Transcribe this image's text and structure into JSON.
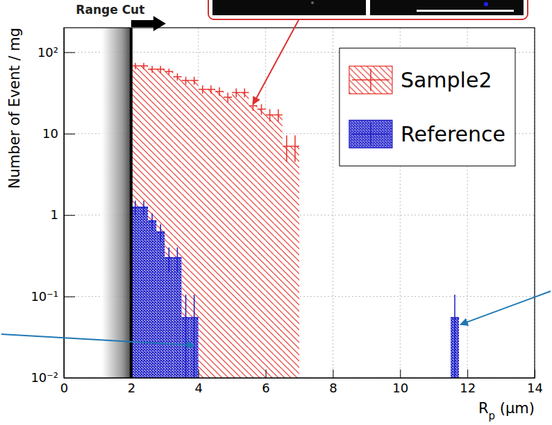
{
  "chart_data": {
    "type": "histogram",
    "x_label": "Rp (μm)",
    "y_label": "Number of Event / mg",
    "log": "y",
    "grid": true,
    "legend": "top-right",
    "xlim": [
      0,
      14
    ],
    "ylim": [
      0.01,
      200
    ],
    "xticks": [
      0,
      2,
      4,
      6,
      8,
      10,
      12,
      14
    ],
    "yticks": [
      {
        "value": 0.01,
        "label": "10⁻²"
      },
      {
        "value": 0.1,
        "label": "10⁻¹"
      },
      1,
      10,
      {
        "value": 100,
        "label": "10²"
      }
    ],
    "annotations": [
      {
        "text": "Range Cut",
        "x": 2
      }
    ],
    "series": [
      {
        "name": "Sample2",
        "color": "#e8302a",
        "bins": [
          2,
          2.25,
          2.5,
          2.75,
          3,
          3.25,
          3.5,
          3.75,
          4,
          4.25,
          4.5,
          4.75,
          5,
          5.25,
          5.5,
          5.75,
          6,
          6.25,
          6.5,
          6.75,
          7
        ],
        "values": [
          68,
          68,
          62,
          62,
          58,
          50,
          45,
          45,
          35,
          35,
          33,
          28,
          32,
          32,
          22,
          20,
          17,
          17,
          7,
          7
        ],
        "errors": [
          6,
          6,
          6,
          6,
          5,
          5,
          5,
          5,
          4,
          4,
          4,
          4,
          4,
          4,
          3,
          3,
          3,
          3,
          2.5,
          2.5
        ]
      },
      {
        "name": "Reference",
        "color": "#1c1cc8",
        "bins": [
          2,
          2.25,
          2.5,
          2.75,
          3,
          3.25,
          3.5,
          3.75,
          4,
          4.25,
          4.5,
          4.75,
          5,
          5.25,
          5.5,
          5.75,
          6,
          6.25,
          6.5,
          6.75,
          7,
          7.25,
          7.5,
          7.75,
          8,
          8.25,
          8.5,
          8.75,
          9,
          9.25,
          9.5,
          9.75,
          10,
          10.25,
          10.5,
          10.75,
          11,
          11.25,
          11.5,
          11.75,
          12
        ],
        "values": [
          1.25,
          1.25,
          0.85,
          0.62,
          0.3,
          0.3,
          0.055,
          0.055,
          null,
          null,
          null,
          null,
          null,
          null,
          null,
          null,
          null,
          null,
          null,
          null,
          null,
          null,
          null,
          null,
          null,
          null,
          null,
          null,
          null,
          null,
          null,
          null,
          null,
          null,
          null,
          null,
          null,
          null,
          0.055,
          null
        ],
        "errors": [
          0.25,
          0.25,
          0.2,
          0.15,
          0.1,
          0.1,
          0.05,
          0.05,
          null,
          null,
          null,
          null,
          null,
          null,
          null,
          null,
          null,
          null,
          null,
          null,
          null,
          null,
          null,
          null,
          null,
          null,
          null,
          null,
          null,
          null,
          null,
          null,
          null,
          null,
          null,
          null,
          null,
          null,
          0.05,
          null
        ]
      }
    ]
  }
}
